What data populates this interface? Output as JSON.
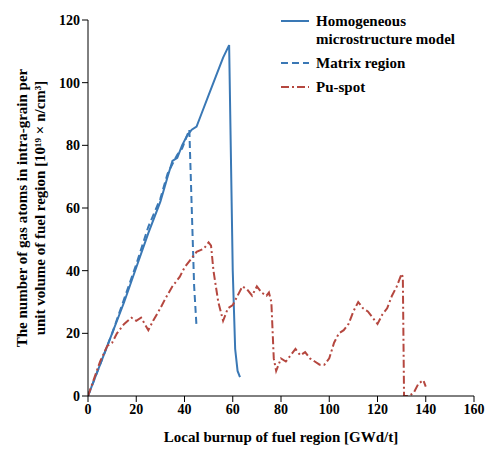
{
  "chart_data": {
    "type": "line",
    "xlabel": "Local burnup of fuel region [GWd/t]",
    "ylabel": [
      "The number of gas atoms in intra-grain per",
      "unit volume of fuel region [10¹⁹ × n/cm³]"
    ],
    "xlim": [
      0,
      160
    ],
    "xticks": [
      0,
      20,
      40,
      60,
      80,
      100,
      120,
      140,
      160
    ],
    "ylim": [
      0,
      120
    ],
    "yticks": [
      0,
      20,
      40,
      60,
      80,
      100,
      120
    ],
    "grid": false,
    "legend": "upper right",
    "series": [
      {
        "name": "Homogeneous microstructure model",
        "color": "#3a78b5",
        "line_style": "solid",
        "x": [
          0,
          5,
          10,
          15,
          20,
          25,
          30,
          33,
          35,
          37,
          39,
          41,
          43,
          45,
          47,
          50,
          53,
          56,
          58.5,
          60,
          61,
          62,
          63
        ],
        "values": [
          0,
          10,
          20,
          30,
          41,
          52,
          62,
          70,
          75,
          76,
          80,
          83,
          85,
          86,
          90,
          96,
          102,
          108,
          112,
          40,
          15,
          8,
          6
        ]
      },
      {
        "name": "Matrix region",
        "color": "#3a78b5",
        "line_style": "dashed",
        "x": [
          0,
          5,
          10,
          15,
          20,
          25,
          30,
          33,
          35,
          37,
          39,
          41,
          42,
          43,
          44,
          45
        ],
        "values": [
          0,
          10,
          20,
          31,
          42,
          54,
          63,
          71,
          74,
          77,
          79,
          83,
          85,
          60,
          35,
          22
        ]
      },
      {
        "name": "Pu-spot",
        "color": "#b5473f",
        "line_style": "dashdot",
        "x": [
          0,
          5,
          8,
          10,
          12,
          15,
          18,
          20,
          22,
          25,
          27,
          30,
          32,
          35,
          38,
          40,
          43,
          45,
          48,
          50,
          51,
          52,
          54,
          56,
          58,
          60,
          62,
          64,
          66,
          68,
          70,
          72,
          74,
          75,
          76,
          77,
          78,
          80,
          82,
          84,
          86,
          88,
          90,
          92,
          94,
          96,
          98,
          100,
          102,
          104,
          106,
          108,
          110,
          112,
          114,
          116,
          118,
          120,
          122,
          124,
          126,
          128,
          130,
          130.5,
          131,
          133,
          135,
          137,
          139,
          140
        ],
        "values": [
          0,
          11,
          16,
          17,
          20,
          23,
          25,
          24,
          25,
          21,
          24,
          28,
          31,
          35,
          38,
          41,
          44,
          46,
          47,
          49,
          48,
          40,
          30,
          24,
          28,
          29,
          32,
          35,
          34,
          32,
          35,
          33,
          32,
          33,
          30,
          12,
          8,
          12,
          11,
          13,
          15,
          13,
          14,
          12,
          11,
          10,
          10,
          12,
          17,
          20,
          21,
          23,
          27,
          30,
          28,
          27,
          25,
          23,
          26,
          28,
          32,
          35,
          39,
          38,
          0,
          0,
          1,
          4,
          5,
          3
        ]
      }
    ]
  }
}
